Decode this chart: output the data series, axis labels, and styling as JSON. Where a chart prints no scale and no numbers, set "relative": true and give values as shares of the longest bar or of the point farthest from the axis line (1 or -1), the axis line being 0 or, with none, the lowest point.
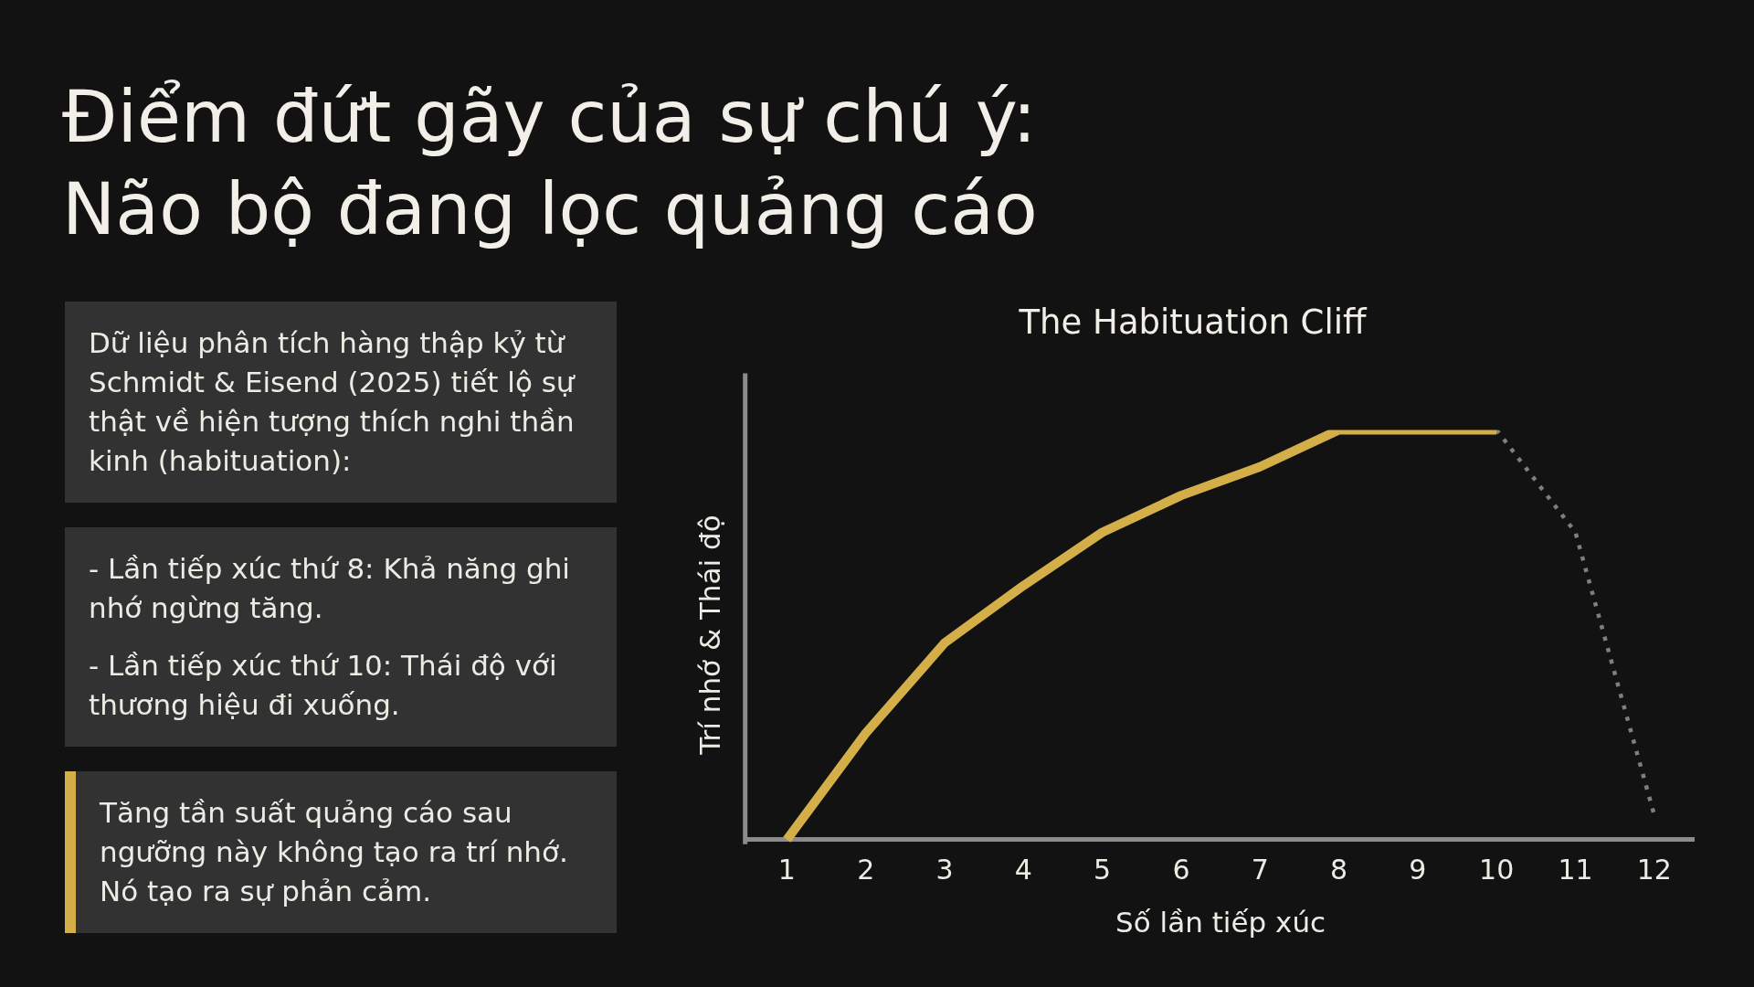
{
  "chart_data": [
    {
      "type": "other",
      "title": "Điểm đứt gãy của sự chú ý: Não bộ đang lọc quảng cáo",
      "annotations": [
        "Dữ liệu phân tích hàng thập kỷ từ Schmidt & Eisend (2025) tiết lộ sự thật về hiện tượng thích nghi thần kinh (habituation):",
        "- Lần tiếp xúc thứ 8: Khả năng ghi nhớ ngừng tăng.\n- Lần tiếp xúc thứ 10: Thái độ với thương hiệu đi xuống.",
        "Tăng tần suất quảng cáo sau ngưỡng này không tạo ra trí nhớ. Nó tạo ra sự phản cảm."
      ]
    },
    {
      "type": "line",
      "title": "The Habituation Cliff",
      "xlabel": "Số lần tiếp xúc",
      "ylabel": "Trí nhớ & Thái độ",
      "x": [
        1,
        2,
        3,
        4,
        5,
        6,
        7,
        8,
        9,
        10,
        11,
        12
      ],
      "xlim": [
        0.5,
        12.5
      ],
      "xticks": [
        1,
        2,
        3,
        4,
        5,
        6,
        7,
        8,
        9,
        10,
        11,
        12
      ],
      "relative": true,
      "marker": "none",
      "grid": false,
      "legend": false,
      "series": [
        {
          "color": "#d4ae48",
          "line_style": "solid",
          "values": [
            0,
            0.26,
            0.48,
            0.62,
            0.75,
            0.84,
            0.91,
            1,
            1,
            1,
            null,
            null
          ]
        },
        {
          "color": "#7f7f7f",
          "line_style": "dotted",
          "values": [
            null,
            null,
            null,
            null,
            null,
            null,
            null,
            null,
            null,
            1,
            0.75,
            0.06
          ]
        }
      ]
    }
  ]
}
